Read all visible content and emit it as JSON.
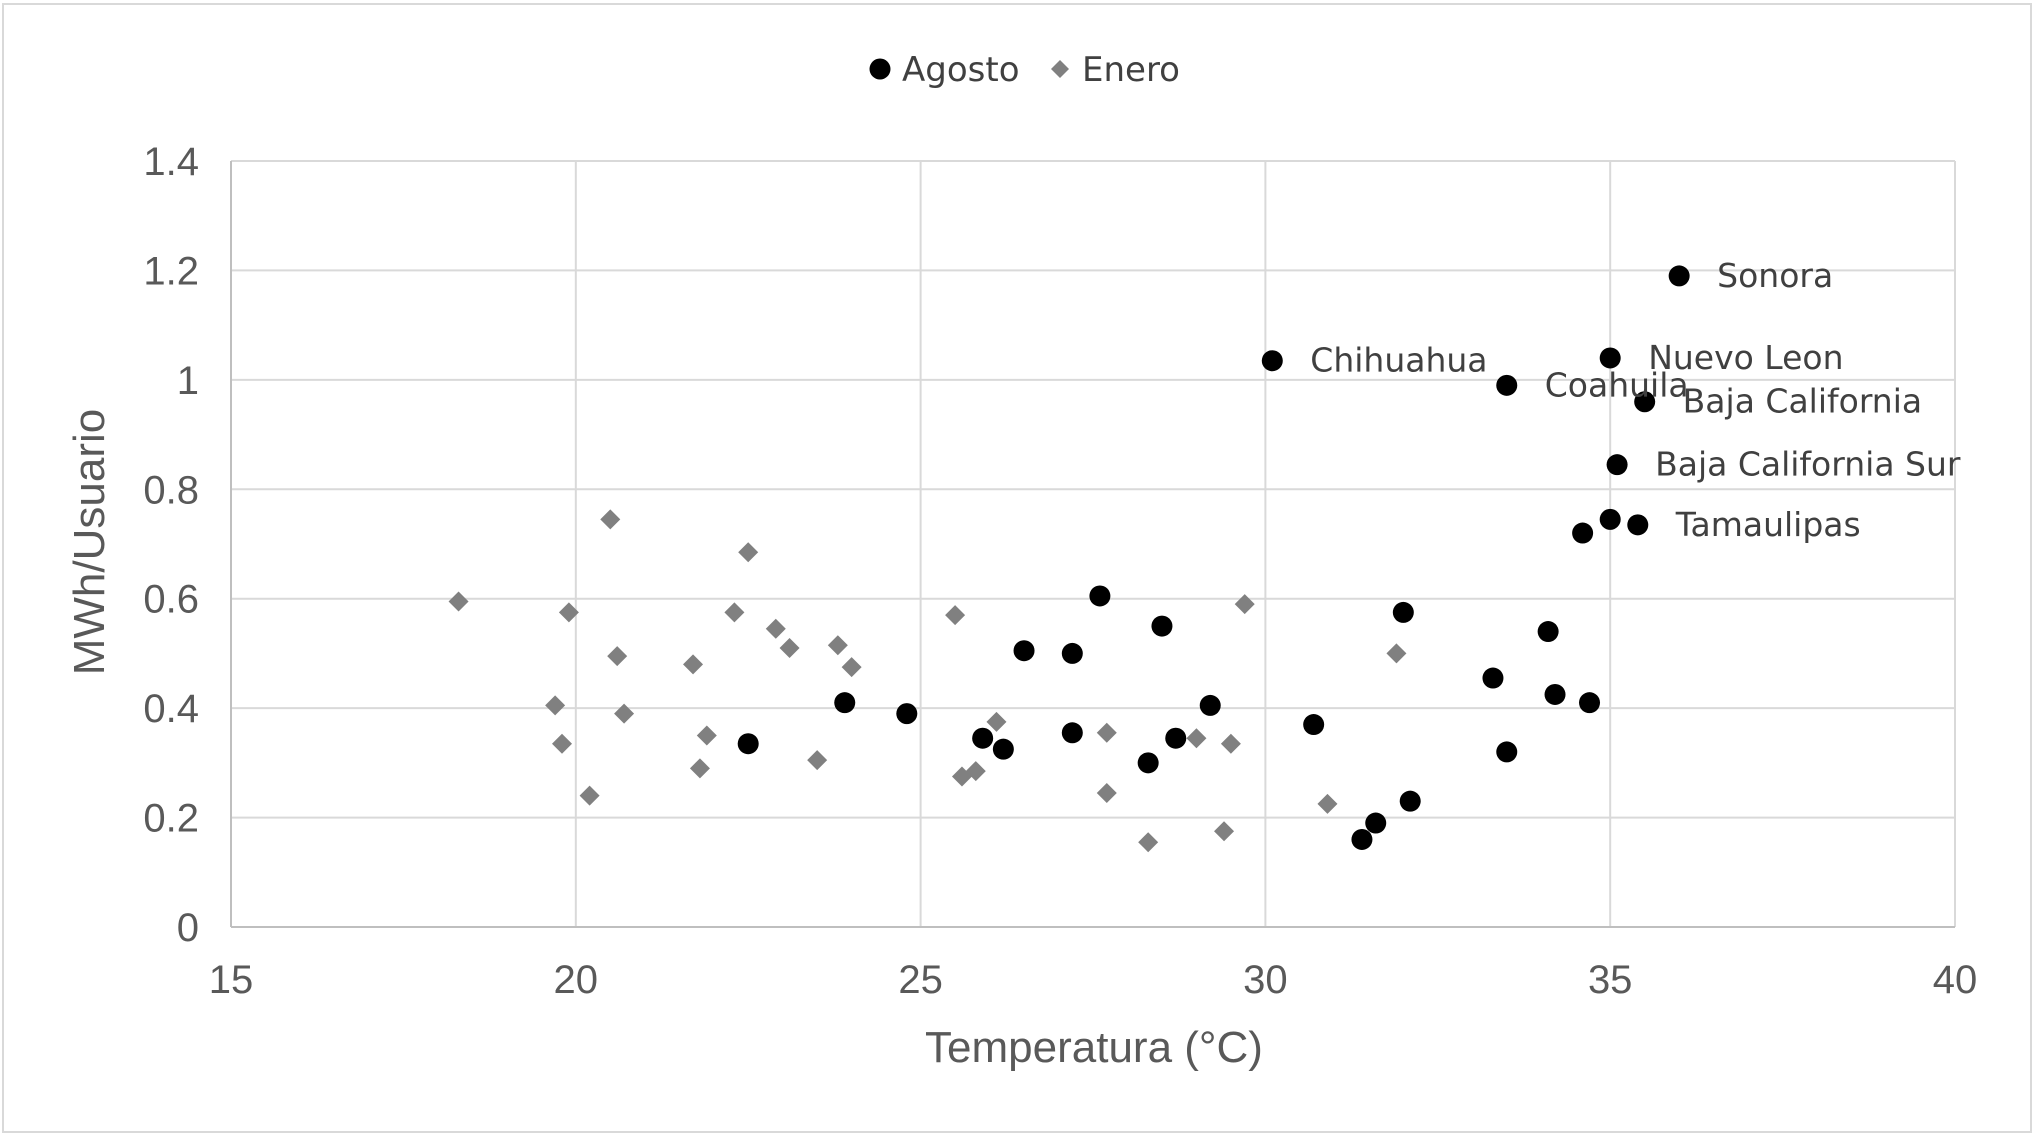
{
  "chart_data": {
    "type": "scatter",
    "xlabel": "Temperatura (°C)",
    "ylabel": "MWh/Usuario",
    "xlim": [
      15,
      40
    ],
    "ylim": [
      0,
      1.4
    ],
    "x_ticks": [
      "15",
      "20",
      "25",
      "30",
      "35",
      "40"
    ],
    "y_ticks": [
      "0",
      "0.2",
      "0.4",
      "0.6",
      "0.8",
      "1",
      "1.2",
      "1.4"
    ],
    "grid": true,
    "legend_position": "top",
    "series": [
      {
        "name": "Agosto",
        "marker": "circle",
        "color": "#000000",
        "points": [
          {
            "x": 36.0,
            "y": 1.19,
            "label": "Sonora"
          },
          {
            "x": 30.1,
            "y": 1.035,
            "label": "Chihuahua"
          },
          {
            "x": 35.0,
            "y": 1.04,
            "label": "Nuevo Leon"
          },
          {
            "x": 33.5,
            "y": 0.99,
            "label": "Coahuila"
          },
          {
            "x": 35.5,
            "y": 0.96,
            "label": "Baja California"
          },
          {
            "x": 35.1,
            "y": 0.845,
            "label": "Baja California Sur"
          },
          {
            "x": 35.4,
            "y": 0.735,
            "label": "Tamaulipas"
          },
          {
            "x": 35.0,
            "y": 0.745
          },
          {
            "x": 34.6,
            "y": 0.72
          },
          {
            "x": 27.6,
            "y": 0.605
          },
          {
            "x": 32.0,
            "y": 0.575
          },
          {
            "x": 28.5,
            "y": 0.55
          },
          {
            "x": 34.1,
            "y": 0.54
          },
          {
            "x": 26.5,
            "y": 0.505
          },
          {
            "x": 27.2,
            "y": 0.5
          },
          {
            "x": 33.3,
            "y": 0.455
          },
          {
            "x": 34.2,
            "y": 0.425
          },
          {
            "x": 23.9,
            "y": 0.41
          },
          {
            "x": 34.7,
            "y": 0.41
          },
          {
            "x": 29.2,
            "y": 0.405
          },
          {
            "x": 24.8,
            "y": 0.39
          },
          {
            "x": 30.7,
            "y": 0.37
          },
          {
            "x": 27.2,
            "y": 0.355
          },
          {
            "x": 25.9,
            "y": 0.345
          },
          {
            "x": 28.7,
            "y": 0.345
          },
          {
            "x": 22.5,
            "y": 0.335
          },
          {
            "x": 26.2,
            "y": 0.325
          },
          {
            "x": 33.5,
            "y": 0.32
          },
          {
            "x": 28.3,
            "y": 0.3
          },
          {
            "x": 32.1,
            "y": 0.23
          },
          {
            "x": 31.6,
            "y": 0.19
          },
          {
            "x": 31.4,
            "y": 0.16
          }
        ]
      },
      {
        "name": "Enero",
        "marker": "diamond",
        "color": "#808080",
        "points": [
          {
            "x": 20.5,
            "y": 0.745
          },
          {
            "x": 22.5,
            "y": 0.685
          },
          {
            "x": 18.3,
            "y": 0.595
          },
          {
            "x": 29.7,
            "y": 0.59
          },
          {
            "x": 19.9,
            "y": 0.575
          },
          {
            "x": 22.3,
            "y": 0.575
          },
          {
            "x": 25.5,
            "y": 0.57
          },
          {
            "x": 22.9,
            "y": 0.545
          },
          {
            "x": 23.8,
            "y": 0.515
          },
          {
            "x": 23.1,
            "y": 0.51
          },
          {
            "x": 31.9,
            "y": 0.5
          },
          {
            "x": 20.6,
            "y": 0.495
          },
          {
            "x": 21.7,
            "y": 0.48
          },
          {
            "x": 24.0,
            "y": 0.475
          },
          {
            "x": 19.7,
            "y": 0.405
          },
          {
            "x": 20.7,
            "y": 0.39
          },
          {
            "x": 26.1,
            "y": 0.375
          },
          {
            "x": 27.7,
            "y": 0.355
          },
          {
            "x": 21.9,
            "y": 0.35
          },
          {
            "x": 28.7,
            "y": 0.345
          },
          {
            "x": 29.0,
            "y": 0.345
          },
          {
            "x": 19.8,
            "y": 0.335
          },
          {
            "x": 29.5,
            "y": 0.335
          },
          {
            "x": 23.5,
            "y": 0.305
          },
          {
            "x": 21.8,
            "y": 0.29
          },
          {
            "x": 25.8,
            "y": 0.285
          },
          {
            "x": 25.6,
            "y": 0.275
          },
          {
            "x": 27.7,
            "y": 0.245
          },
          {
            "x": 20.2,
            "y": 0.24
          },
          {
            "x": 30.9,
            "y": 0.225
          },
          {
            "x": 29.4,
            "y": 0.175
          },
          {
            "x": 28.3,
            "y": 0.155
          }
        ]
      }
    ]
  }
}
